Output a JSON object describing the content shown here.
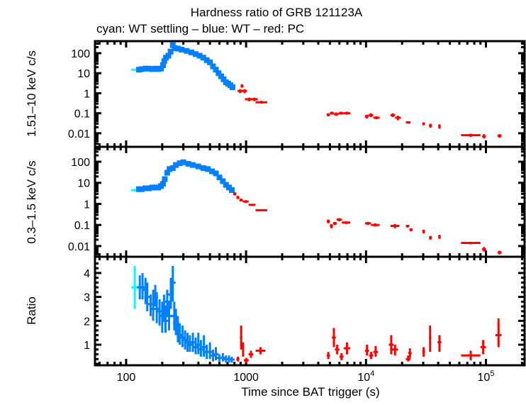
{
  "chart_data": {
    "type": "scatter",
    "title": "Hardness ratio of GRB 121123A",
    "subtitle": "cyan: WT settling – blue: WT – red: PC",
    "xlabel": "Time since BAT trigger (s)",
    "xscale": "log",
    "xlim": [
      55,
      210000
    ],
    "xticks": [
      {
        "v": 100,
        "label": "100"
      },
      {
        "v": 1000,
        "label": "1000"
      },
      {
        "v": 10000,
        "label": "10",
        "exp": "4"
      },
      {
        "v": 100000,
        "label": "10",
        "exp": "5"
      }
    ],
    "colors": {
      "cyan": "#00ffff",
      "blue": "#0080ff",
      "red": "#ff0000"
    },
    "panels": [
      {
        "ylabel": "1.51–10 keV c/s",
        "yscale": "log",
        "ylim": [
          0.0021,
          400
        ],
        "yticks": [
          {
            "v": 100,
            "label": "100"
          },
          {
            "v": 10,
            "label": "10"
          },
          {
            "v": 1,
            "label": "1"
          },
          {
            "v": 0.1,
            "label": "0.1"
          },
          {
            "v": 0.01,
            "label": "0.01"
          }
        ],
        "cyan": [
          [
            118,
            15,
            13,
            17
          ]
        ],
        "blue": [
          [
            128,
            15
          ],
          [
            135,
            16
          ],
          [
            145,
            17
          ],
          [
            155,
            17
          ],
          [
            165,
            16
          ],
          [
            175,
            17
          ],
          [
            185,
            16
          ],
          [
            195,
            17
          ],
          [
            203,
            25
          ],
          [
            208,
            40
          ],
          [
            215,
            60
          ],
          [
            225,
            75
          ],
          [
            235,
            120
          ],
          [
            245,
            250
          ],
          [
            255,
            180
          ],
          [
            270,
            170
          ],
          [
            290,
            150
          ],
          [
            320,
            130
          ],
          [
            350,
            110
          ],
          [
            380,
            90
          ],
          [
            410,
            75
          ],
          [
            440,
            60
          ],
          [
            470,
            45
          ],
          [
            500,
            35
          ],
          [
            530,
            22
          ],
          [
            560,
            15
          ],
          [
            590,
            10
          ],
          [
            620,
            7
          ],
          [
            650,
            5
          ],
          [
            680,
            3.5
          ],
          [
            710,
            3
          ],
          [
            740,
            2.5
          ],
          [
            770,
            2
          ]
        ],
        "red": [
          [
            850,
            940,
            1.3,
            1.0,
            1.6
          ],
          [
            900,
            950,
            2.3,
            1.9,
            2.8
          ],
          [
            930,
            1020,
            1.3,
            1.0,
            1.6
          ],
          [
            980,
            1150,
            0.5,
            0.4,
            0.6
          ],
          [
            1100,
            1250,
            0.5,
            0.4,
            0.6
          ],
          [
            1200,
            1500,
            0.35,
            0.3,
            0.42
          ],
          [
            4700,
            5000,
            0.085,
            0.07,
            0.1
          ],
          [
            5000,
            5400,
            0.1,
            0.085,
            0.12
          ],
          [
            5400,
            5900,
            0.09,
            0.075,
            0.11
          ],
          [
            5900,
            6500,
            0.1,
            0.085,
            0.12
          ],
          [
            6500,
            7400,
            0.1,
            0.085,
            0.12
          ],
          [
            9800,
            10500,
            0.07,
            0.055,
            0.085
          ],
          [
            10500,
            11500,
            0.08,
            0.065,
            0.1
          ],
          [
            11500,
            13000,
            0.06,
            0.05,
            0.07
          ],
          [
            16000,
            17500,
            0.08,
            0.065,
            0.1
          ],
          [
            17500,
            19500,
            0.06,
            0.045,
            0.075
          ],
          [
            21500,
            23500,
            0.035,
            0.03,
            0.04
          ],
          [
            29500,
            31000,
            0.03,
            0.025,
            0.035
          ],
          [
            33500,
            35500,
            0.024,
            0.019,
            0.03
          ],
          [
            40000,
            42000,
            0.022,
            0.017,
            0.028
          ],
          [
            62000,
            90000,
            0.008,
            0.0065,
            0.0095
          ],
          [
            93000,
            100000,
            0.007,
            0.0055,
            0.009
          ],
          [
            125000,
            135000,
            0.0075,
            0.006,
            0.009
          ]
        ]
      },
      {
        "ylabel": "0.3–1.5 keV c/s",
        "yscale": "log",
        "ylim": [
          0.0031,
          510
        ],
        "yticks": [
          {
            "v": 100,
            "label": "100"
          },
          {
            "v": 10,
            "label": "10"
          },
          {
            "v": 1,
            "label": "1"
          },
          {
            "v": 0.1,
            "label": "0.1"
          },
          {
            "v": 0.01,
            "label": "0.01"
          }
        ],
        "cyan": [
          [
            118,
            4.5,
            3.8,
            5.2
          ]
        ],
        "blue": [
          [
            128,
            5
          ],
          [
            135,
            5
          ],
          [
            145,
            5.5
          ],
          [
            155,
            5.5
          ],
          [
            165,
            6
          ],
          [
            175,
            6
          ],
          [
            185,
            6
          ],
          [
            195,
            7
          ],
          [
            203,
            9
          ],
          [
            210,
            15
          ],
          [
            220,
            30
          ],
          [
            230,
            45
          ],
          [
            245,
            50
          ],
          [
            260,
            70
          ],
          [
            280,
            85
          ],
          [
            300,
            95
          ],
          [
            330,
            80
          ],
          [
            360,
            70
          ],
          [
            400,
            60
          ],
          [
            440,
            50
          ],
          [
            480,
            45
          ],
          [
            520,
            35
          ],
          [
            560,
            28
          ],
          [
            600,
            18
          ],
          [
            640,
            12
          ],
          [
            680,
            8
          ],
          [
            720,
            6
          ],
          [
            760,
            4.5
          ]
        ],
        "red": [
          [
            780,
            830,
            3.0,
            2.5,
            3.6
          ],
          [
            830,
            880,
            2.0,
            1.7,
            2.4
          ],
          [
            880,
            940,
            1.5,
            1.3,
            1.8
          ],
          [
            940,
            1050,
            1.3,
            1.1,
            1.5
          ],
          [
            1050,
            1200,
            0.9,
            0.8,
            1.0
          ],
          [
            1200,
            1500,
            0.5,
            0.45,
            0.55
          ],
          [
            4700,
            5000,
            0.15,
            0.12,
            0.18
          ],
          [
            5000,
            5300,
            0.09,
            0.07,
            0.11
          ],
          [
            5300,
            5700,
            0.12,
            0.1,
            0.14
          ],
          [
            5700,
            6300,
            0.18,
            0.15,
            0.21
          ],
          [
            6300,
            7400,
            0.13,
            0.11,
            0.15
          ],
          [
            9800,
            11000,
            0.12,
            0.1,
            0.14
          ],
          [
            11000,
            13000,
            0.1,
            0.085,
            0.12
          ],
          [
            16000,
            19000,
            0.09,
            0.07,
            0.11
          ],
          [
            21500,
            23000,
            0.09,
            0.075,
            0.1
          ],
          [
            23000,
            24500,
            0.06,
            0.05,
            0.07
          ],
          [
            29500,
            31000,
            0.05,
            0.04,
            0.06
          ],
          [
            33500,
            35500,
            0.025,
            0.02,
            0.03
          ],
          [
            40000,
            42000,
            0.028,
            0.022,
            0.034
          ],
          [
            62000,
            90000,
            0.014,
            0.012,
            0.016
          ],
          [
            93000,
            100000,
            0.007,
            0.0055,
            0.009
          ],
          [
            125000,
            135000,
            0.005,
            0.004,
            0.006
          ]
        ]
      },
      {
        "ylabel": "Ratio",
        "yscale": "linear",
        "ylim": [
          0.14,
          4.68
        ],
        "yticks": [
          {
            "v": 4,
            "label": "4"
          },
          {
            "v": 3,
            "label": "3"
          },
          {
            "v": 2,
            "label": "2"
          },
          {
            "v": 1,
            "label": "1"
          }
        ],
        "cyan": [
          [
            118,
            3.4,
            2.5,
            4.3
          ]
        ],
        "blue": [
          [
            130,
            3.4,
            2.9,
            3.9
          ],
          [
            137,
            3.4,
            2.9,
            4.0
          ],
          [
            145,
            3.3,
            2.7,
            3.8
          ],
          [
            150,
            3.0,
            2.4,
            3.6
          ],
          [
            160,
            2.7,
            2.2,
            3.1
          ],
          [
            168,
            2.5,
            2.0,
            3.3
          ],
          [
            175,
            3.0,
            2.6,
            3.5
          ],
          [
            180,
            2.5,
            1.9,
            3.2
          ],
          [
            190,
            2.4,
            1.8,
            2.9
          ],
          [
            200,
            2.2,
            1.5,
            2.8
          ],
          [
            207,
            2.6,
            2.0,
            3.1
          ],
          [
            213,
            2.0,
            1.5,
            2.6
          ],
          [
            220,
            2.8,
            2.2,
            3.3
          ],
          [
            228,
            2.2,
            1.6,
            2.8
          ],
          [
            236,
            3.1,
            2.5,
            3.8
          ],
          [
            245,
            3.6,
            2.8,
            4.3
          ],
          [
            252,
            2.2,
            1.6,
            2.8
          ],
          [
            260,
            1.9,
            1.4,
            2.5
          ],
          [
            270,
            1.6,
            1.1,
            2.2
          ],
          [
            280,
            1.4,
            1.0,
            1.9
          ],
          [
            295,
            1.3,
            0.9,
            1.8
          ],
          [
            310,
            1.2,
            0.8,
            1.6
          ],
          [
            325,
            1.1,
            0.7,
            1.5
          ],
          [
            340,
            1.0,
            0.7,
            1.4
          ],
          [
            360,
            1.1,
            0.7,
            1.5
          ],
          [
            380,
            0.9,
            0.6,
            1.3
          ],
          [
            400,
            1.0,
            0.6,
            1.5
          ],
          [
            420,
            0.8,
            0.5,
            1.2
          ],
          [
            445,
            0.9,
            0.5,
            1.4
          ],
          [
            470,
            0.7,
            0.4,
            1.0
          ],
          [
            500,
            0.7,
            0.4,
            1.1
          ],
          [
            530,
            0.55,
            0.3,
            0.8
          ],
          [
            560,
            0.6,
            0.35,
            0.9
          ],
          [
            600,
            0.45,
            0.3,
            0.6
          ],
          [
            640,
            0.45,
            0.3,
            0.65
          ],
          [
            680,
            0.4,
            0.25,
            0.55
          ],
          [
            720,
            0.4,
            0.25,
            0.55
          ],
          [
            760,
            0.38,
            0.25,
            0.5
          ]
        ],
        "red": [
          [
            830,
            880,
            0.4,
            0.3,
            0.5
          ],
          [
            890,
            930,
            1.3,
            0.8,
            1.8
          ],
          [
            930,
            960,
            0.8,
            0.5,
            1.1
          ],
          [
            960,
            1050,
            0.35,
            0.25,
            0.45
          ],
          [
            1050,
            1150,
            0.6,
            0.45,
            0.75
          ],
          [
            1200,
            1450,
            0.75,
            0.6,
            0.9
          ],
          [
            4700,
            5000,
            0.55,
            0.4,
            0.7
          ],
          [
            5200,
            5600,
            1.3,
            0.9,
            1.7
          ],
          [
            5500,
            6000,
            0.8,
            0.6,
            1.0
          ],
          [
            6000,
            6500,
            0.5,
            0.35,
            0.65
          ],
          [
            6500,
            7400,
            0.85,
            0.6,
            1.1
          ],
          [
            9800,
            10600,
            0.75,
            0.55,
            1.0
          ],
          [
            10600,
            11500,
            0.55,
            0.4,
            0.7
          ],
          [
            11500,
            12600,
            0.7,
            0.5,
            0.95
          ],
          [
            15500,
            17000,
            1.0,
            0.6,
            1.4
          ],
          [
            16500,
            18500,
            0.8,
            0.55,
            1.0
          ],
          [
            21500,
            23500,
            0.4,
            0.3,
            0.55
          ],
          [
            22500,
            24000,
            0.65,
            0.45,
            0.85
          ],
          [
            29500,
            31000,
            0.7,
            0.5,
            0.9
          ],
          [
            33500,
            35000,
            1.3,
            0.7,
            1.8
          ],
          [
            39500,
            42500,
            1.1,
            0.7,
            1.4
          ],
          [
            62000,
            90000,
            0.55,
            0.35,
            0.75
          ],
          [
            90000,
            100000,
            0.9,
            0.6,
            1.2
          ],
          [
            120000,
            135000,
            1.4,
            0.9,
            2.1
          ]
        ]
      }
    ]
  }
}
